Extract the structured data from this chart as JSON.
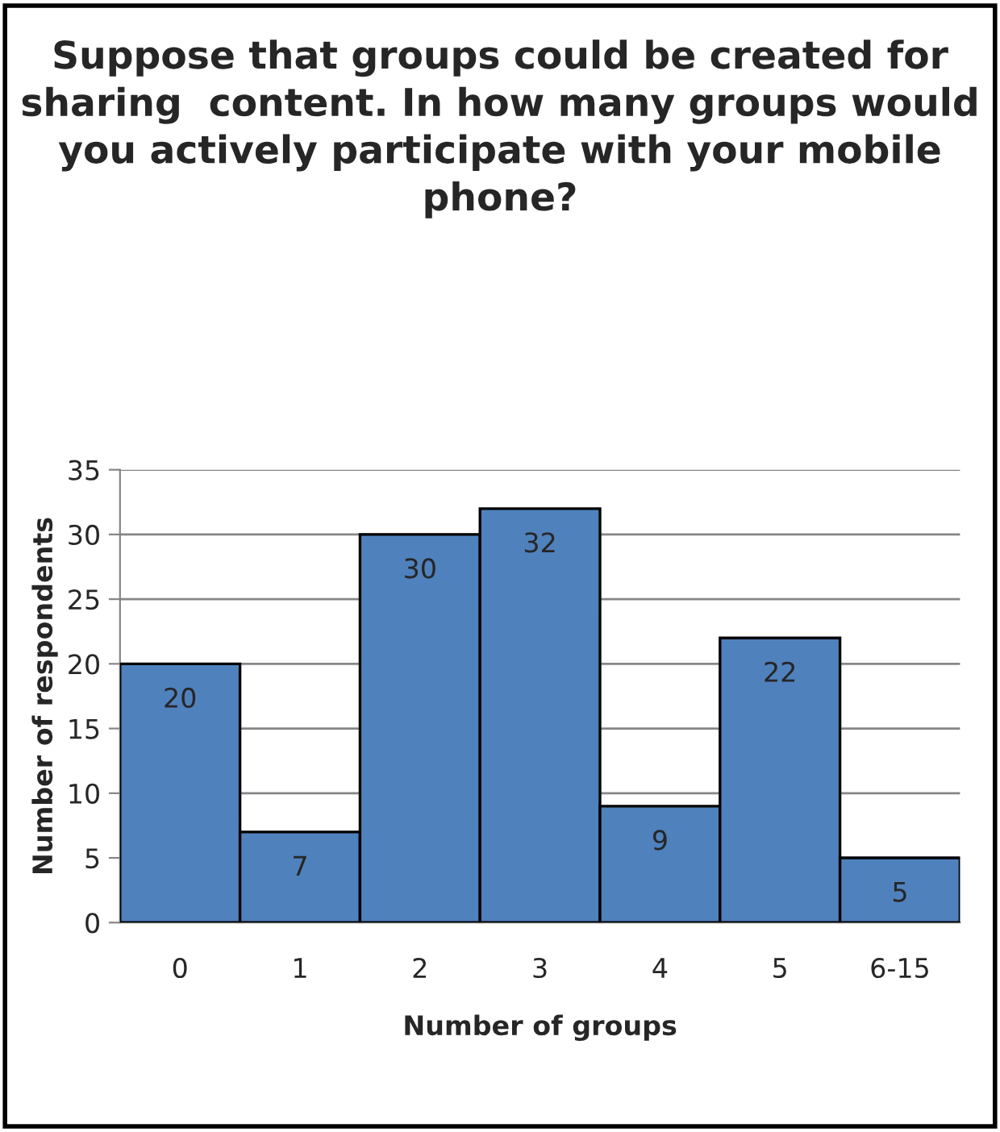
{
  "chart_data": {
    "type": "bar",
    "title": "Suppose that groups could be created for sharing  content. In how many groups would you actively participate with your mobile phone?",
    "xlabel": "Number of groups",
    "ylabel": "Number of respondents",
    "categories": [
      "0",
      "1",
      "2",
      "3",
      "4",
      "5",
      "6-15"
    ],
    "values": [
      20,
      7,
      30,
      32,
      9,
      22,
      5
    ],
    "color": "#4f81bd",
    "ylim": [
      0,
      35
    ],
    "yticks": [
      0,
      5,
      10,
      15,
      20,
      25,
      30,
      35
    ],
    "grid": "y",
    "data_labels": true,
    "legend": false
  }
}
